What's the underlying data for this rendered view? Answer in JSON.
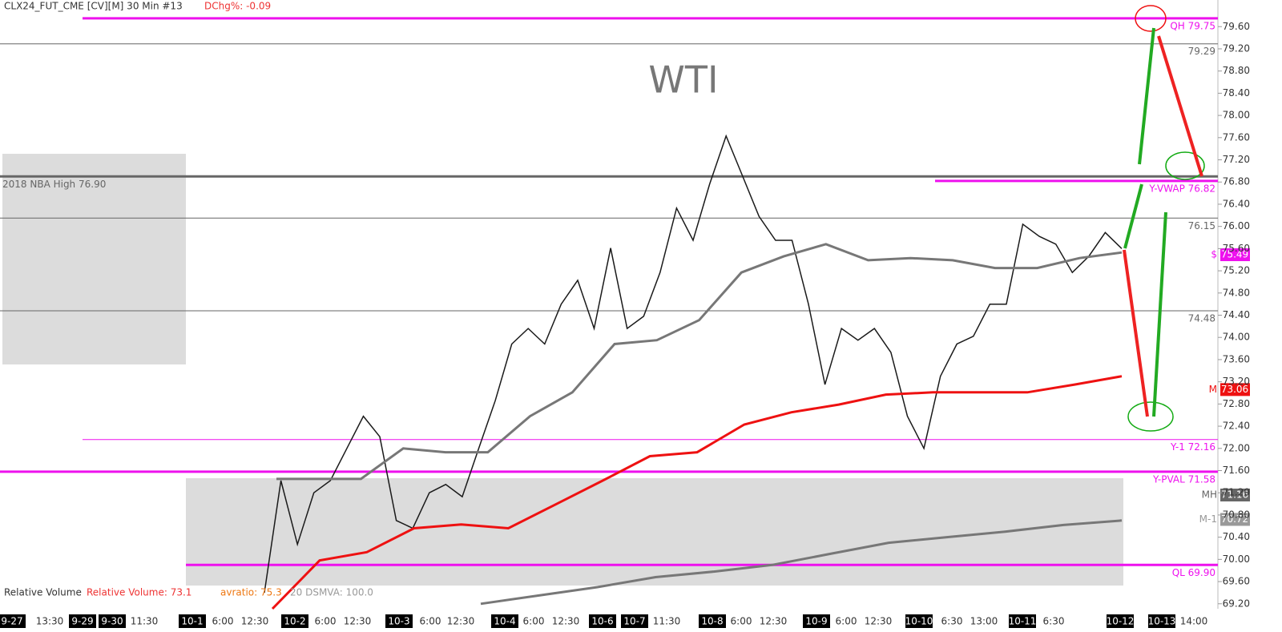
{
  "chart_data": {
    "type": "line",
    "title": "CLX24_FUT_CME [CV][M] 30 Min #13",
    "change_label": "DChg%: -0.09",
    "watermark": "WTI",
    "ylim": [
      69.11,
      80.08
    ],
    "yticks": [
      {
        "value": 69.2,
        "label": "69.20"
      },
      {
        "value": 69.6,
        "label": "69.60"
      },
      {
        "value": 70,
        "label": "70.00"
      },
      {
        "value": 70.4,
        "label": "70.40"
      },
      {
        "value": 70.8,
        "label": "70.80"
      },
      {
        "value": 71.2,
        "label": "71.20"
      },
      {
        "value": 71.6,
        "label": "71.60"
      },
      {
        "value": 72,
        "label": "72.00"
      },
      {
        "value": 72.4,
        "label": "72.40"
      },
      {
        "value": 72.8,
        "label": "72.80"
      },
      {
        "value": 73.2,
        "label": "73.20"
      },
      {
        "value": 73.6,
        "label": "73.60"
      },
      {
        "value": 74,
        "label": "74.00"
      },
      {
        "value": 74.4,
        "label": "74.40"
      },
      {
        "value": 74.8,
        "label": "74.80"
      },
      {
        "value": 75.2,
        "label": "75.20"
      },
      {
        "value": 75.6,
        "label": "75.60"
      },
      {
        "value": 76,
        "label": "76.00"
      },
      {
        "value": 76.4,
        "label": "76.40"
      },
      {
        "value": 76.8,
        "label": "76.80"
      },
      {
        "value": 77.2,
        "label": "77.20"
      },
      {
        "value": 77.6,
        "label": "77.60"
      },
      {
        "value": 78,
        "label": "78.00"
      },
      {
        "value": 78.4,
        "label": "78.40"
      },
      {
        "value": 78.8,
        "label": "78.80"
      },
      {
        "value": 79.2,
        "label": "79.20"
      },
      {
        "value": 79.6,
        "label": "79.60"
      }
    ],
    "x_labels": [
      "9-27",
      "13:30",
      "9-29",
      "9-30",
      "11:30",
      "10-1",
      "6:00",
      "12:30",
      "10-2",
      "6:00",
      "12:30",
      "10-3",
      "6:00",
      "12:30",
      "10-4",
      "6:00",
      "12:30",
      "10-6",
      "10-7",
      "11:30",
      "10-8",
      "6:00",
      "12:30",
      "10-9",
      "6:00",
      "12:30",
      "10-10",
      "6:30",
      "13:00",
      "10-11",
      "6:30",
      "10-12",
      "10-13",
      "14:00"
    ],
    "x_label_highlight": [
      true,
      false,
      true,
      true,
      false,
      true,
      false,
      false,
      true,
      false,
      false,
      true,
      false,
      false,
      true,
      false,
      false,
      true,
      true,
      false,
      true,
      false,
      false,
      true,
      false,
      false,
      true,
      false,
      false,
      true,
      false,
      true,
      true,
      false
    ],
    "series": [
      {
        "name": "Price",
        "color": "#1a1a1a",
        "values": [
          69.4,
          71.42,
          70.27,
          71.2,
          71.42,
          72.0,
          72.58,
          72.21,
          70.7,
          70.56,
          71.2,
          71.35,
          71.13,
          72.0,
          72.86,
          73.88,
          74.16,
          73.88,
          74.6,
          75.03,
          74.16,
          75.61,
          74.16,
          74.38,
          75.17,
          76.33,
          75.75,
          76.76,
          77.63,
          76.91,
          76.18,
          75.75,
          75.75,
          74.6,
          73.15,
          74.16,
          73.95,
          74.16,
          73.73,
          72.58,
          72.0,
          73.3,
          73.88,
          74.02,
          74.6,
          74.6,
          76.04,
          75.82,
          75.68,
          75.17,
          75.46,
          75.89,
          75.6
        ]
      },
      {
        "name": "VWAP",
        "color": "#777777",
        "values": [
          71.45,
          71.45,
          71.45,
          72.0,
          71.93,
          71.93,
          72.58,
          73.01,
          73.88,
          73.95,
          74.31,
          75.17,
          75.46,
          75.68,
          75.39,
          75.43,
          75.39,
          75.25,
          75.25,
          75.43,
          75.53
        ]
      },
      {
        "name": "M",
        "color": "#ee1111",
        "values": [
          69.11,
          69.98,
          70.13,
          70.56,
          70.63,
          70.56,
          70.99,
          71.42,
          71.86,
          71.93,
          72.43,
          72.65,
          72.79,
          72.97,
          73.01,
          73.01,
          73.01,
          73.15,
          73.3
        ]
      },
      {
        "name": "M-1",
        "color": "#777777",
        "values": [
          69.2,
          69.35,
          69.5,
          69.68,
          69.78,
          69.9,
          70.1,
          70.3,
          70.4,
          70.5,
          70.62,
          70.7
        ]
      }
    ],
    "levels": [
      {
        "label": "QH  79.75",
        "value": 79.75,
        "color": "#ee11ee"
      },
      {
        "label": "79.29",
        "value": 79.29,
        "color": "#666666"
      },
      {
        "label": "2018 NBA High  76.90",
        "value": 76.9,
        "color": "#666666"
      },
      {
        "label": "Y-VWAP  76.82",
        "value": 76.82,
        "color": "#ee11ee"
      },
      {
        "label": "76.15",
        "value": 76.15,
        "color": "#666666"
      },
      {
        "label": "74.48",
        "value": 74.48,
        "color": "#666666"
      },
      {
        "label": "Y-1  72.16",
        "value": 72.16,
        "color": "#ee11ee"
      },
      {
        "label": "Y-PVAL  71.58",
        "value": 71.58,
        "color": "#ee11ee"
      },
      {
        "label": "QL  69.90",
        "value": 69.9,
        "color": "#ee11ee"
      }
    ],
    "badges": [
      {
        "tag": "$",
        "text": "75.49",
        "value": 75.49,
        "color": "#ee11ee"
      },
      {
        "tag": "M",
        "text": "73.06",
        "value": 73.06,
        "color": "#ee1111"
      },
      {
        "tag": "MH",
        "text": "71.16",
        "value": 71.16,
        "color": "#666666"
      },
      {
        "tag": "M-1",
        "text": "70.72",
        "value": 70.72,
        "color": "#999999"
      }
    ],
    "volume_labels": [
      "Relative Volume",
      "Relative Volume: 73.1",
      "avratio: 75.3",
      "20 DSMVA: 100.0"
    ]
  }
}
